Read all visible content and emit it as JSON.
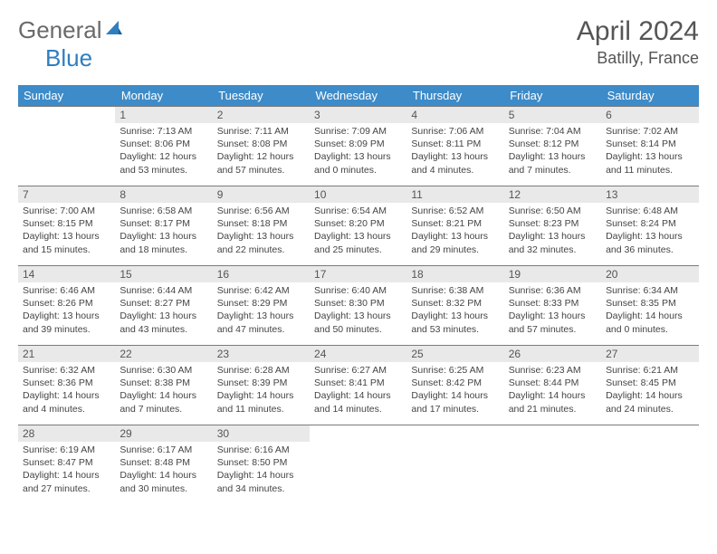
{
  "brand": {
    "part1": "General",
    "part2": "Blue"
  },
  "title": "April 2024",
  "location": "Batilly, France",
  "colors": {
    "header_bg": "#3d8bc8",
    "header_text": "#ffffff",
    "daynum_bg": "#e9e9e9",
    "text": "#444444",
    "border": "#7a7a7a",
    "brand_gray": "#6a6a6a",
    "brand_blue": "#2f7ebf"
  },
  "weekdays": [
    "Sunday",
    "Monday",
    "Tuesday",
    "Wednesday",
    "Thursday",
    "Friday",
    "Saturday"
  ],
  "weeks": [
    [
      {
        "empty": true
      },
      {
        "num": "1",
        "sunrise": "Sunrise: 7:13 AM",
        "sunset": "Sunset: 8:06 PM",
        "dl1": "Daylight: 12 hours",
        "dl2": "and 53 minutes."
      },
      {
        "num": "2",
        "sunrise": "Sunrise: 7:11 AM",
        "sunset": "Sunset: 8:08 PM",
        "dl1": "Daylight: 12 hours",
        "dl2": "and 57 minutes."
      },
      {
        "num": "3",
        "sunrise": "Sunrise: 7:09 AM",
        "sunset": "Sunset: 8:09 PM",
        "dl1": "Daylight: 13 hours",
        "dl2": "and 0 minutes."
      },
      {
        "num": "4",
        "sunrise": "Sunrise: 7:06 AM",
        "sunset": "Sunset: 8:11 PM",
        "dl1": "Daylight: 13 hours",
        "dl2": "and 4 minutes."
      },
      {
        "num": "5",
        "sunrise": "Sunrise: 7:04 AM",
        "sunset": "Sunset: 8:12 PM",
        "dl1": "Daylight: 13 hours",
        "dl2": "and 7 minutes."
      },
      {
        "num": "6",
        "sunrise": "Sunrise: 7:02 AM",
        "sunset": "Sunset: 8:14 PM",
        "dl1": "Daylight: 13 hours",
        "dl2": "and 11 minutes."
      }
    ],
    [
      {
        "num": "7",
        "sunrise": "Sunrise: 7:00 AM",
        "sunset": "Sunset: 8:15 PM",
        "dl1": "Daylight: 13 hours",
        "dl2": "and 15 minutes."
      },
      {
        "num": "8",
        "sunrise": "Sunrise: 6:58 AM",
        "sunset": "Sunset: 8:17 PM",
        "dl1": "Daylight: 13 hours",
        "dl2": "and 18 minutes."
      },
      {
        "num": "9",
        "sunrise": "Sunrise: 6:56 AM",
        "sunset": "Sunset: 8:18 PM",
        "dl1": "Daylight: 13 hours",
        "dl2": "and 22 minutes."
      },
      {
        "num": "10",
        "sunrise": "Sunrise: 6:54 AM",
        "sunset": "Sunset: 8:20 PM",
        "dl1": "Daylight: 13 hours",
        "dl2": "and 25 minutes."
      },
      {
        "num": "11",
        "sunrise": "Sunrise: 6:52 AM",
        "sunset": "Sunset: 8:21 PM",
        "dl1": "Daylight: 13 hours",
        "dl2": "and 29 minutes."
      },
      {
        "num": "12",
        "sunrise": "Sunrise: 6:50 AM",
        "sunset": "Sunset: 8:23 PM",
        "dl1": "Daylight: 13 hours",
        "dl2": "and 32 minutes."
      },
      {
        "num": "13",
        "sunrise": "Sunrise: 6:48 AM",
        "sunset": "Sunset: 8:24 PM",
        "dl1": "Daylight: 13 hours",
        "dl2": "and 36 minutes."
      }
    ],
    [
      {
        "num": "14",
        "sunrise": "Sunrise: 6:46 AM",
        "sunset": "Sunset: 8:26 PM",
        "dl1": "Daylight: 13 hours",
        "dl2": "and 39 minutes."
      },
      {
        "num": "15",
        "sunrise": "Sunrise: 6:44 AM",
        "sunset": "Sunset: 8:27 PM",
        "dl1": "Daylight: 13 hours",
        "dl2": "and 43 minutes."
      },
      {
        "num": "16",
        "sunrise": "Sunrise: 6:42 AM",
        "sunset": "Sunset: 8:29 PM",
        "dl1": "Daylight: 13 hours",
        "dl2": "and 47 minutes."
      },
      {
        "num": "17",
        "sunrise": "Sunrise: 6:40 AM",
        "sunset": "Sunset: 8:30 PM",
        "dl1": "Daylight: 13 hours",
        "dl2": "and 50 minutes."
      },
      {
        "num": "18",
        "sunrise": "Sunrise: 6:38 AM",
        "sunset": "Sunset: 8:32 PM",
        "dl1": "Daylight: 13 hours",
        "dl2": "and 53 minutes."
      },
      {
        "num": "19",
        "sunrise": "Sunrise: 6:36 AM",
        "sunset": "Sunset: 8:33 PM",
        "dl1": "Daylight: 13 hours",
        "dl2": "and 57 minutes."
      },
      {
        "num": "20",
        "sunrise": "Sunrise: 6:34 AM",
        "sunset": "Sunset: 8:35 PM",
        "dl1": "Daylight: 14 hours",
        "dl2": "and 0 minutes."
      }
    ],
    [
      {
        "num": "21",
        "sunrise": "Sunrise: 6:32 AM",
        "sunset": "Sunset: 8:36 PM",
        "dl1": "Daylight: 14 hours",
        "dl2": "and 4 minutes."
      },
      {
        "num": "22",
        "sunrise": "Sunrise: 6:30 AM",
        "sunset": "Sunset: 8:38 PM",
        "dl1": "Daylight: 14 hours",
        "dl2": "and 7 minutes."
      },
      {
        "num": "23",
        "sunrise": "Sunrise: 6:28 AM",
        "sunset": "Sunset: 8:39 PM",
        "dl1": "Daylight: 14 hours",
        "dl2": "and 11 minutes."
      },
      {
        "num": "24",
        "sunrise": "Sunrise: 6:27 AM",
        "sunset": "Sunset: 8:41 PM",
        "dl1": "Daylight: 14 hours",
        "dl2": "and 14 minutes."
      },
      {
        "num": "25",
        "sunrise": "Sunrise: 6:25 AM",
        "sunset": "Sunset: 8:42 PM",
        "dl1": "Daylight: 14 hours",
        "dl2": "and 17 minutes."
      },
      {
        "num": "26",
        "sunrise": "Sunrise: 6:23 AM",
        "sunset": "Sunset: 8:44 PM",
        "dl1": "Daylight: 14 hours",
        "dl2": "and 21 minutes."
      },
      {
        "num": "27",
        "sunrise": "Sunrise: 6:21 AM",
        "sunset": "Sunset: 8:45 PM",
        "dl1": "Daylight: 14 hours",
        "dl2": "and 24 minutes."
      }
    ],
    [
      {
        "num": "28",
        "sunrise": "Sunrise: 6:19 AM",
        "sunset": "Sunset: 8:47 PM",
        "dl1": "Daylight: 14 hours",
        "dl2": "and 27 minutes."
      },
      {
        "num": "29",
        "sunrise": "Sunrise: 6:17 AM",
        "sunset": "Sunset: 8:48 PM",
        "dl1": "Daylight: 14 hours",
        "dl2": "and 30 minutes."
      },
      {
        "num": "30",
        "sunrise": "Sunrise: 6:16 AM",
        "sunset": "Sunset: 8:50 PM",
        "dl1": "Daylight: 14 hours",
        "dl2": "and 34 minutes."
      },
      {
        "empty": true
      },
      {
        "empty": true
      },
      {
        "empty": true
      },
      {
        "empty": true
      }
    ]
  ]
}
